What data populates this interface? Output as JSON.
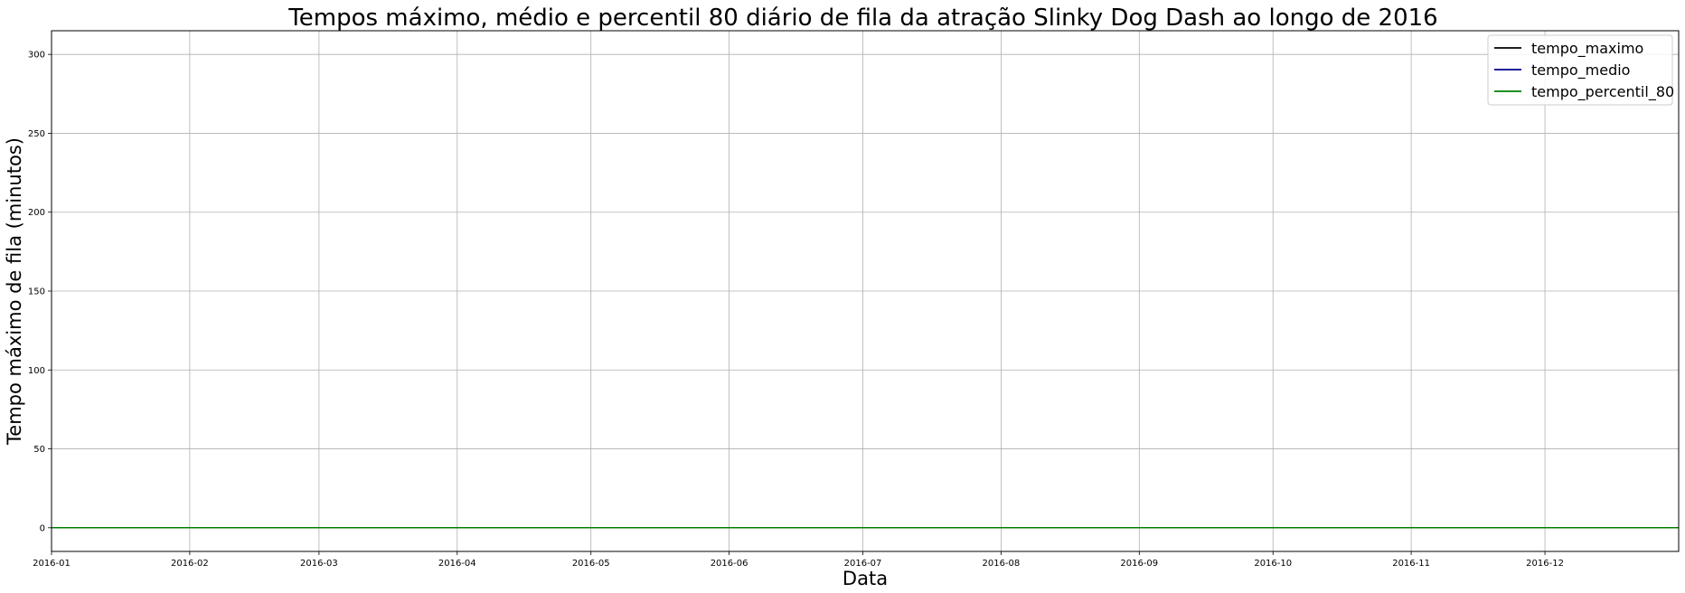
{
  "chart_data": {
    "type": "line",
    "title": "Tempos máximo, médio e percentil 80 diário de fila da atração Slinky Dog Dash ao longo de 2016",
    "xlabel": "Data",
    "ylabel": "Tempo máximo de fila (minutos)",
    "xlim": [
      "2016-01-01",
      "2016-12-31"
    ],
    "ylim": [
      -15,
      315
    ],
    "x_ticks": [
      "2016-01",
      "2016-02",
      "2016-03",
      "2016-04",
      "2016-05",
      "2016-06",
      "2016-07",
      "2016-08",
      "2016-09",
      "2016-10",
      "2016-11",
      "2016-12"
    ],
    "y_ticks": [
      0,
      50,
      100,
      150,
      200,
      250,
      300
    ],
    "grid": true,
    "legend_position": "top-right",
    "x": [
      "2016-01-01",
      "2016-12-31"
    ],
    "series": [
      {
        "name": "tempo_maximo",
        "color": "#000000",
        "values": [
          0,
          0
        ]
      },
      {
        "name": "tempo_medio",
        "color": "#00008b",
        "values": [
          0,
          0
        ]
      },
      {
        "name": "tempo_percentil_80",
        "color": "#008000",
        "values": [
          0,
          0
        ]
      }
    ]
  }
}
